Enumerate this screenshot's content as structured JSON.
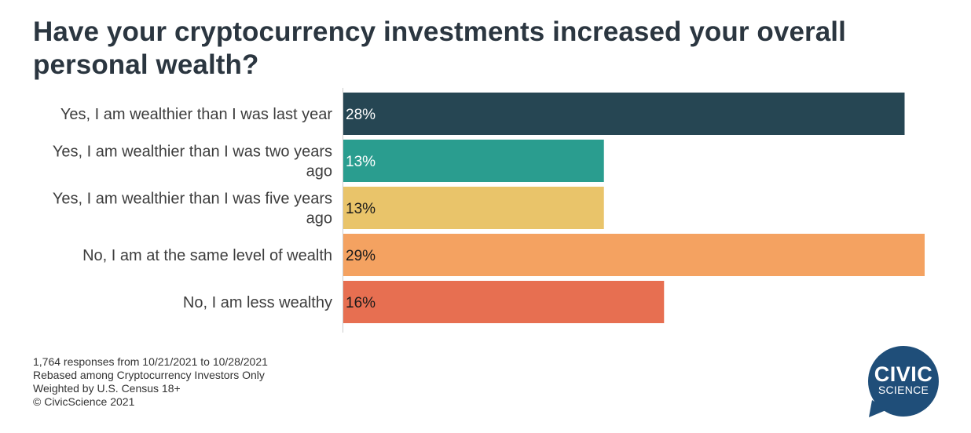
{
  "chart_data": {
    "type": "bar",
    "orientation": "horizontal",
    "title": "Have your cryptocurrency investments increased your overall personal wealth?",
    "categories": [
      [
        "Yes, I am wealthier than I was last year"
      ],
      [
        "Yes, I am wealthier than I was two years",
        "ago"
      ],
      [
        "Yes, I am wealthier than I was five years",
        "ago"
      ],
      [
        "No, I am at the same level of wealth"
      ],
      [
        "No, I am less wealthy"
      ]
    ],
    "values": [
      28,
      13,
      13,
      29,
      16
    ],
    "value_labels": [
      "28%",
      "13%",
      "13%",
      "29%",
      "16%"
    ],
    "colors": [
      "#264653",
      "#2a9d8f",
      "#e9c46a",
      "#f4a261",
      "#e76f51"
    ],
    "value_label_colors": [
      "#ffffff",
      "#ffffff",
      "#1a1a1a",
      "#1a1a1a",
      "#1a1a1a"
    ],
    "xlim": [
      0,
      29
    ],
    "grid": false,
    "legend": "none"
  },
  "footer": {
    "line1": "1,764 responses from 10/21/2021 to 10/28/2021",
    "line2": "Rebased among Cryptocurrency Investors Only",
    "line3": "Weighted by U.S. Census 18+",
    "line4": "© CivicScience 2021"
  },
  "logo": {
    "word1": "CIVIC",
    "word2": "SCIENCE",
    "color": "#1f4e79"
  }
}
